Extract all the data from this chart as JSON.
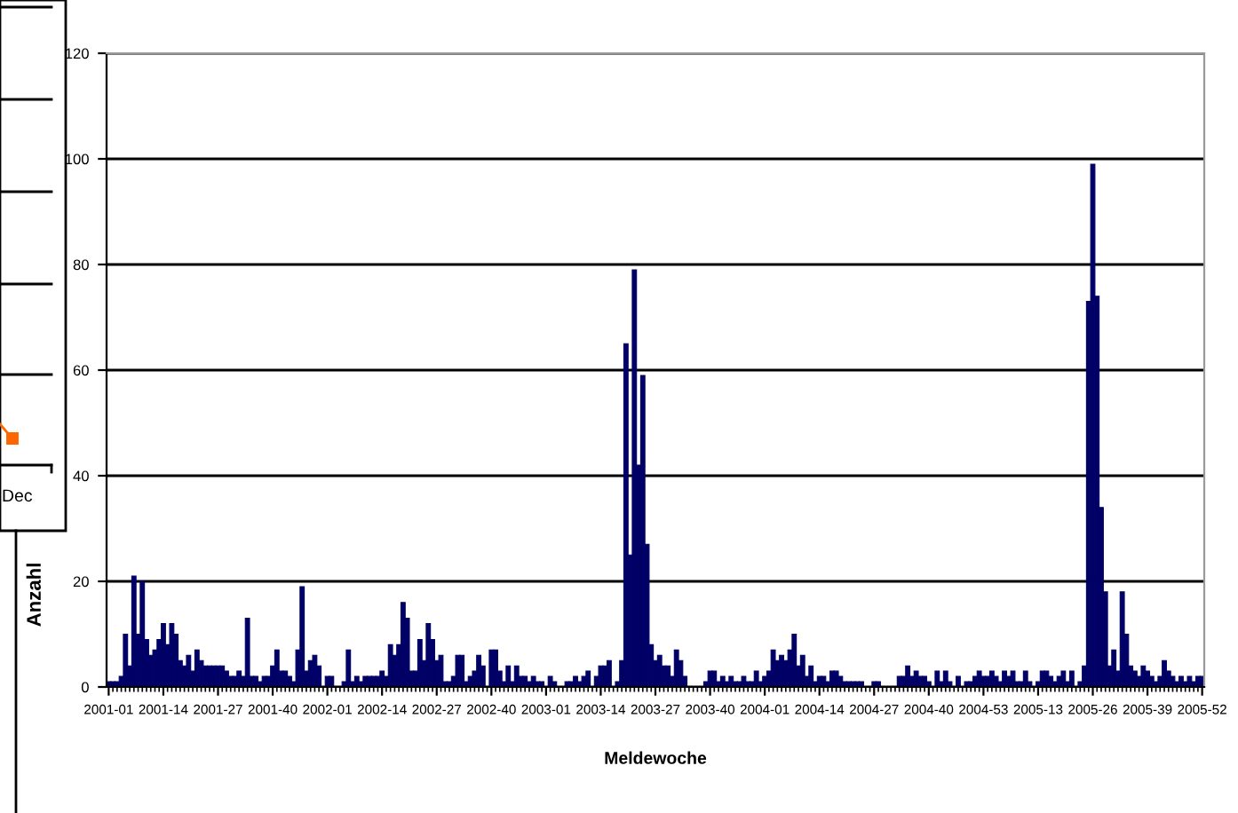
{
  "chart_data": [
    {
      "type": "other",
      "annotations": [
        "Dec"
      ]
    },
    {
      "type": "bar",
      "xlabel": "Meldewoche",
      "ylabel": "Anzahl",
      "ylim": [
        0,
        120
      ],
      "yticks": [
        0,
        20,
        40,
        60,
        80,
        100,
        120
      ],
      "grid": "y",
      "categories": [
        "2001-01",
        null,
        null,
        null,
        null,
        null,
        null,
        null,
        null,
        null,
        null,
        null,
        null,
        "2001-14",
        null,
        null,
        null,
        null,
        null,
        null,
        null,
        null,
        null,
        null,
        null,
        null,
        "2001-27",
        null,
        null,
        null,
        null,
        null,
        null,
        null,
        null,
        null,
        null,
        null,
        null,
        "2001-40",
        null,
        null,
        null,
        null,
        null,
        null,
        null,
        null,
        null,
        null,
        null,
        null,
        "2002-01",
        null,
        null,
        null,
        null,
        null,
        null,
        null,
        null,
        null,
        null,
        null,
        null,
        "2002-14",
        null,
        null,
        null,
        null,
        null,
        null,
        null,
        null,
        null,
        null,
        null,
        null,
        "2002-27",
        null,
        null,
        null,
        null,
        null,
        null,
        null,
        null,
        null,
        null,
        null,
        null,
        "2002-40",
        null,
        null,
        null,
        null,
        null,
        null,
        null,
        null,
        null,
        null,
        null,
        null,
        "2003-01",
        null,
        null,
        null,
        null,
        null,
        null,
        null,
        null,
        null,
        null,
        null,
        null,
        "2003-14",
        null,
        null,
        null,
        null,
        null,
        null,
        null,
        null,
        null,
        null,
        null,
        null,
        "2003-27",
        null,
        null,
        null,
        null,
        null,
        null,
        null,
        null,
        null,
        null,
        null,
        null,
        "2003-40",
        null,
        null,
        null,
        null,
        null,
        null,
        null,
        null,
        null,
        null,
        null,
        null,
        "2004-01",
        null,
        null,
        null,
        null,
        null,
        null,
        null,
        null,
        null,
        null,
        null,
        null,
        "2004-14",
        null,
        null,
        null,
        null,
        null,
        null,
        null,
        null,
        null,
        null,
        null,
        null,
        "2004-27",
        null,
        null,
        null,
        null,
        null,
        null,
        null,
        null,
        null,
        null,
        null,
        null,
        "2004-40",
        null,
        null,
        null,
        null,
        null,
        null,
        null,
        null,
        null,
        null,
        null,
        null,
        "2004-53",
        null,
        null,
        null,
        null,
        null,
        null,
        null,
        null,
        null,
        null,
        null,
        null,
        "2005-13",
        null,
        null,
        null,
        null,
        null,
        null,
        null,
        null,
        null,
        null,
        null,
        null,
        "2005-26",
        null,
        null,
        null,
        null,
        null,
        null,
        null,
        null,
        null,
        null,
        null,
        null,
        "2005-39",
        null,
        null,
        null,
        null,
        null,
        null,
        null,
        null,
        null,
        null,
        null,
        null,
        "2005-52"
      ],
      "series": [
        {
          "color": "#000066",
          "values": [
            1,
            1,
            1,
            2,
            10,
            4,
            21,
            10,
            20,
            9,
            6,
            7,
            9,
            12,
            8,
            12,
            10,
            5,
            4,
            6,
            3,
            7,
            5,
            4,
            4,
            4,
            4,
            4,
            3,
            2,
            2,
            3,
            2,
            13,
            2,
            2,
            1,
            2,
            2,
            4,
            7,
            3,
            3,
            2,
            1,
            7,
            19,
            3,
            5,
            6,
            4,
            0,
            2,
            2,
            0,
            0,
            1,
            7,
            1,
            2,
            1,
            2,
            2,
            2,
            2,
            3,
            2,
            8,
            6,
            8,
            16,
            13,
            3,
            3,
            9,
            5,
            12,
            9,
            5,
            6,
            1,
            1,
            2,
            6,
            6,
            1,
            2,
            3,
            6,
            4,
            0,
            7,
            7,
            3,
            1,
            4,
            1,
            4,
            2,
            2,
            1,
            2,
            1,
            1,
            0,
            2,
            1,
            0,
            0,
            1,
            1,
            2,
            1,
            2,
            3,
            0,
            2,
            4,
            4,
            5,
            0,
            1,
            5,
            65,
            25,
            79,
            42,
            59,
            27,
            8,
            5,
            6,
            4,
            4,
            2,
            7,
            5,
            2,
            0,
            0,
            0,
            0,
            1,
            3,
            3,
            1,
            2,
            1,
            2,
            1,
            1,
            2,
            1,
            1,
            3,
            1,
            2,
            3,
            7,
            5,
            6,
            5,
            7,
            10,
            4,
            6,
            2,
            4,
            1,
            2,
            2,
            1,
            3,
            3,
            2,
            1,
            1,
            1,
            1,
            1,
            0,
            0,
            1,
            1,
            0,
            0,
            0,
            0,
            2,
            2,
            4,
            2,
            3,
            2,
            2,
            1,
            0,
            3,
            1,
            3,
            1,
            0,
            2,
            0,
            1,
            1,
            2,
            3,
            2,
            2,
            3,
            2,
            1,
            3,
            2,
            3,
            1,
            1,
            3,
            1,
            0,
            1,
            3,
            3,
            2,
            1,
            2,
            3,
            1,
            3,
            0,
            1,
            4,
            73,
            99,
            74,
            34,
            18,
            4,
            7,
            3,
            18,
            10,
            4,
            3,
            2,
            4,
            3,
            2,
            1,
            2,
            5,
            3,
            2,
            1,
            2,
            1,
            2,
            1,
            2,
            2
          ]
        }
      ]
    }
  ]
}
